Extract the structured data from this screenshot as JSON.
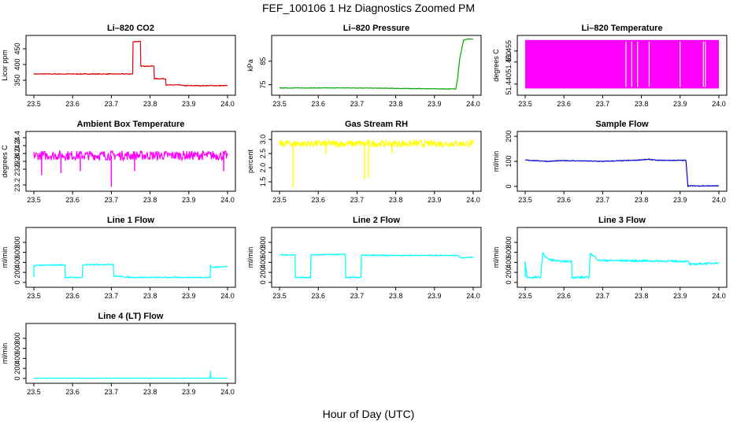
{
  "page": {
    "title": "FEF_100106  1 Hz Diagnostics Zoomed PM",
    "xlabel": "Hour of Day (UTC)"
  },
  "chart_data": [
    {
      "id": "co2",
      "type": "line",
      "title": "Li–820 CO2",
      "ylabel": "Licor ppm",
      "color": "#dd0000",
      "xlim": [
        23.5,
        24.0
      ],
      "ylim": [
        310,
        485
      ],
      "xticks": [
        "23.5",
        "23.6",
        "23.7",
        "23.8",
        "23.9",
        "24.0"
      ],
      "yticks": [
        {
          "v": 350,
          "l": "350"
        },
        {
          "v": 400,
          "l": "400"
        },
        {
          "v": 450,
          "l": "450"
        }
      ],
      "series": [
        {
          "x": [
            23.5,
            23.755,
            23.756,
            23.775,
            23.776,
            23.81,
            23.811,
            23.84,
            23.841,
            23.882,
            23.883,
            24.0
          ],
          "y": [
            370,
            370,
            473,
            473,
            395,
            395,
            355,
            355,
            335,
            335,
            333,
            333
          ]
        }
      ],
      "noise": 1.2
    },
    {
      "id": "pressure",
      "type": "line",
      "title": "Li–820 Pressure",
      "ylabel": "kPa",
      "color": "#00aa00",
      "xlim": [
        23.5,
        24.0
      ],
      "ylim": [
        71.5,
        95
      ],
      "xticks": [
        "23.5",
        "23.6",
        "23.7",
        "23.8",
        "23.9",
        "24.0"
      ],
      "yticks": [
        {
          "v": 75,
          "l": "75"
        },
        {
          "v": 85,
          "l": "85"
        }
      ],
      "series": [
        {
          "x": [
            23.5,
            23.7,
            23.92,
            23.955,
            23.96,
            23.965,
            23.975,
            23.985,
            24.0
          ],
          "y": [
            73.6,
            73.6,
            73.2,
            73.2,
            78,
            86,
            94,
            94.4,
            94.4
          ]
        }
      ],
      "noise": 0.1
    },
    {
      "id": "temperature",
      "type": "area",
      "title": "Li–820 Temperature",
      "ylabel": "degrees C",
      "color": "#ff00ff",
      "xlim": [
        23.5,
        24.0
      ],
      "ylim": [
        51.436,
        51.461
      ],
      "xticks": [
        "23.5",
        "23.6",
        "23.7",
        "23.8",
        "23.9",
        "24.0"
      ],
      "yticks": [
        {
          "v": 51.44,
          "l": "51.440"
        },
        {
          "v": 51.45,
          "l": "51.450"
        },
        {
          "v": 51.455,
          "l": "51.455"
        }
      ],
      "series": [
        {
          "low": 51.438,
          "high": 51.46,
          "gaps": [
            23.76,
            23.775,
            23.79,
            23.82,
            23.9,
            23.96,
            23.965
          ]
        }
      ]
    },
    {
      "id": "ambient",
      "type": "line",
      "title": "Ambient Box Temperature",
      "ylabel": "degrees C",
      "color": "#ff00ff",
      "xlim": [
        23.5,
        24.0
      ],
      "ylim": [
        23.1,
        24.5
      ],
      "xticks": [
        "23.5",
        "23.6",
        "23.7",
        "23.8",
        "23.9",
        "24.0"
      ],
      "yticks": [
        {
          "v": 23.2,
          "l": "23.2"
        },
        {
          "v": 23.6,
          "l": "23.6"
        },
        {
          "v": 23.8,
          "l": "23.8"
        },
        {
          "v": 24.0,
          "l": "24.0"
        },
        {
          "v": 24.2,
          "l": "24.2"
        },
        {
          "v": 24.4,
          "l": "24.4"
        }
      ],
      "series": [
        {
          "x": [
            23.5,
            24.0
          ],
          "y": [
            23.95,
            23.95
          ]
        }
      ],
      "noise": 0.12,
      "spikes": [
        {
          "x": 23.52,
          "y": 23.45
        },
        {
          "x": 23.57,
          "y": 23.5
        },
        {
          "x": 23.62,
          "y": 23.55
        },
        {
          "x": 23.7,
          "y": 23.15
        },
        {
          "x": 23.76,
          "y": 23.55
        },
        {
          "x": 23.99,
          "y": 23.55
        }
      ]
    },
    {
      "id": "rh",
      "type": "line",
      "title": "Gas Stream RH",
      "ylabel": "percent",
      "color": "#ffff00",
      "xlim": [
        23.5,
        24.0
      ],
      "ylim": [
        1.25,
        3.2
      ],
      "xticks": [
        "23.5",
        "23.6",
        "23.7",
        "23.8",
        "23.9",
        "24.0"
      ],
      "yticks": [
        {
          "v": 1.5,
          "l": "1.5"
        },
        {
          "v": 2.0,
          "l": "2.0"
        },
        {
          "v": 2.5,
          "l": "2.5"
        },
        {
          "v": 3.0,
          "l": "3.0"
        }
      ],
      "series": [
        {
          "x": [
            23.5,
            24.0
          ],
          "y": [
            2.85,
            2.85
          ]
        }
      ],
      "noise": 0.12,
      "spikes": [
        {
          "x": 23.535,
          "y": 1.3
        },
        {
          "x": 23.62,
          "y": 2.5
        },
        {
          "x": 23.72,
          "y": 1.6
        },
        {
          "x": 23.73,
          "y": 1.65
        },
        {
          "x": 23.79,
          "y": 2.5
        }
      ]
    },
    {
      "id": "sample",
      "type": "line",
      "title": "Sample Flow",
      "ylabel": "ml/min",
      "color": "#0000cc",
      "xlim": [
        23.5,
        24.0
      ],
      "ylim": [
        -10,
        210
      ],
      "xticks": [
        "23.5",
        "23.6",
        "23.7",
        "23.8",
        "23.9",
        "24.0"
      ],
      "yticks": [
        {
          "v": 0,
          "l": "0"
        },
        {
          "v": 100,
          "l": "100"
        },
        {
          "v": 200,
          "l": "200"
        }
      ],
      "series": [
        {
          "x": [
            23.5,
            23.56,
            23.6,
            23.7,
            23.78,
            23.82,
            23.84,
            23.915,
            23.92,
            24.0
          ],
          "y": [
            105,
            100,
            103,
            100,
            104,
            108,
            104,
            104,
            2,
            2
          ]
        }
      ],
      "noise": 1.5
    },
    {
      "id": "line1",
      "type": "line",
      "title": "Line 1 Flow",
      "ylabel": "ml/min",
      "color": "#00ffff",
      "xlim": [
        23.5,
        24.0
      ],
      "ylim": [
        -50,
        1050
      ],
      "xticks": [
        "23.5",
        "23.6",
        "23.7",
        "23.8",
        "23.9",
        "24.0"
      ],
      "yticks": [
        {
          "v": 0,
          "l": "0"
        },
        {
          "v": 200,
          "l": "200"
        },
        {
          "v": 400,
          "l": "400"
        },
        {
          "v": 600,
          "l": "600"
        },
        {
          "v": 800,
          "l": "800"
        }
      ],
      "series": [
        {
          "x": [
            23.5,
            23.5,
            23.505,
            23.58,
            23.581,
            23.625,
            23.626,
            23.705,
            23.706,
            23.75,
            23.955,
            23.956,
            23.96,
            24.0
          ],
          "y": [
            100,
            320,
            340,
            350,
            100,
            100,
            350,
            360,
            130,
            100,
            100,
            330,
            300,
            320
          ]
        }
      ],
      "noise": 10
    },
    {
      "id": "line2",
      "type": "line",
      "title": "Line 2 Flow",
      "ylabel": "ml/min",
      "color": "#00ffff",
      "xlim": [
        23.5,
        24.0
      ],
      "ylim": [
        -50,
        1050
      ],
      "xticks": [
        "23.5",
        "23.6",
        "23.7",
        "23.8",
        "23.9",
        "24.0"
      ],
      "yticks": [
        {
          "v": 0,
          "l": "0"
        },
        {
          "v": 200,
          "l": "200"
        },
        {
          "v": 400,
          "l": "400"
        },
        {
          "v": 600,
          "l": "600"
        },
        {
          "v": 800,
          "l": "800"
        }
      ],
      "series": [
        {
          "x": [
            23.5,
            23.54,
            23.541,
            23.58,
            23.581,
            23.67,
            23.671,
            23.71,
            23.711,
            23.96,
            23.97,
            24.0
          ],
          "y": [
            550,
            550,
            100,
            100,
            550,
            560,
            100,
            100,
            540,
            540,
            490,
            500
          ]
        }
      ],
      "noise": 10
    },
    {
      "id": "line3",
      "type": "line",
      "title": "Line 3 Flow",
      "ylabel": "ml/min",
      "color": "#00ffff",
      "xlim": [
        23.5,
        24.0
      ],
      "ylim": [
        -50,
        1050
      ],
      "xticks": [
        "23.5",
        "23.6",
        "23.7",
        "23.8",
        "23.9",
        "24.0"
      ],
      "yticks": [
        {
          "v": 0,
          "l": "0"
        },
        {
          "v": 200,
          "l": "200"
        },
        {
          "v": 400,
          "l": "400"
        },
        {
          "v": 600,
          "l": "600"
        },
        {
          "v": 800,
          "l": "800"
        }
      ],
      "series": [
        {
          "x": [
            23.5,
            23.5,
            23.505,
            23.54,
            23.545,
            23.56,
            23.59,
            23.62,
            23.621,
            23.665,
            23.668,
            23.69,
            23.92,
            23.925,
            24.0
          ],
          "y": [
            100,
            420,
            100,
            100,
            580,
            460,
            420,
            420,
            100,
            100,
            580,
            440,
            420,
            360,
            390
          ]
        }
      ],
      "noise": 18
    },
    {
      "id": "line4",
      "type": "line",
      "title": "Line 4 (LT) Flow",
      "ylabel": "ml/min",
      "color": "#00ffff",
      "xlim": [
        23.5,
        24.0
      ],
      "ylim": [
        -50,
        1050
      ],
      "xticks": [
        "23.5",
        "23.6",
        "23.7",
        "23.8",
        "23.9",
        "24.0"
      ],
      "yticks": [
        {
          "v": 0,
          "l": "0"
        },
        {
          "v": 200,
          "l": "200"
        },
        {
          "v": 400,
          "l": "400"
        },
        {
          "v": 600,
          "l": "600"
        },
        {
          "v": 800,
          "l": "800"
        }
      ],
      "series": [
        {
          "x": [
            23.5,
            23.955,
            23.956,
            23.957,
            23.96,
            24.0
          ],
          "y": [
            5,
            5,
            150,
            20,
            5,
            5
          ]
        }
      ],
      "noise": 3
    }
  ]
}
